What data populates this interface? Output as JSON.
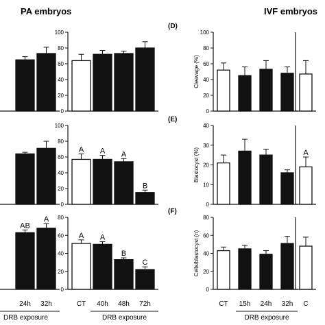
{
  "titles": {
    "pa": "PA embryos",
    "ivf": "IVF embryos"
  },
  "colors": {
    "control": "#ffffff",
    "treated": "#111111",
    "stroke": "#111111"
  },
  "chart_data": [
    {
      "id": "pa-left-1",
      "type": "bar",
      "categories": [
        "",
        "",
        "24h",
        "32h"
      ],
      "values": [
        null,
        null,
        65,
        73
      ],
      "errors": [
        null,
        null,
        4,
        8
      ],
      "fills": [
        "treated",
        "treated",
        "treated",
        "treated"
      ],
      "ylim": [
        0,
        100
      ],
      "yticks": [],
      "ylabel": "",
      "panel_label": "",
      "letters": [],
      "show_xlabels": false,
      "group_label": ""
    },
    {
      "id": "pa-right-1",
      "type": "bar",
      "categories": [
        "CT",
        "40h",
        "48h",
        "72h"
      ],
      "values": [
        64,
        72,
        73,
        80
      ],
      "errors": [
        8,
        5,
        3,
        8
      ],
      "fills": [
        "control",
        "treated",
        "treated",
        "treated"
      ],
      "ylim": [
        0,
        100
      ],
      "yticks": [
        0,
        20,
        40,
        60,
        80,
        100
      ],
      "ylabel": "",
      "panel_label": "",
      "letters": [],
      "show_xlabels": false,
      "group_label": ""
    },
    {
      "id": "ivf-left-1",
      "type": "bar",
      "categories": [
        "CT",
        "15h",
        "24h",
        "32h"
      ],
      "values": [
        52,
        45,
        53,
        48
      ],
      "errors": [
        9,
        11,
        11,
        8
      ],
      "fills": [
        "control",
        "treated",
        "treated",
        "treated"
      ],
      "ylim": [
        0,
        100
      ],
      "yticks": [
        0,
        20,
        40,
        60,
        80,
        100
      ],
      "ylabel": "Cleavage (%)",
      "panel_label": "(D)",
      "letters": [],
      "show_xlabels": false,
      "group_label": ""
    },
    {
      "id": "ivf-right-1",
      "type": "bar",
      "categories": [
        "CT"
      ],
      "values": [
        47
      ],
      "errors": [
        17
      ],
      "fills": [
        "control"
      ],
      "ylim": [
        0,
        100
      ],
      "yticks": [],
      "ylabel": "",
      "panel_label": "",
      "letters": [],
      "show_xlabels": false,
      "group_label": ""
    },
    {
      "id": "pa-left-2",
      "type": "bar",
      "categories": [
        "",
        "",
        "24h",
        "32h"
      ],
      "values": [
        null,
        null,
        64,
        71
      ],
      "errors": [
        null,
        null,
        2,
        9
      ],
      "fills": [
        "treated",
        "treated",
        "treated",
        "treated"
      ],
      "ylim": [
        0,
        100
      ],
      "yticks": [],
      "ylabel": "",
      "panel_label": "",
      "letters": [],
      "show_xlabels": false,
      "group_label": ""
    },
    {
      "id": "pa-right-2",
      "type": "bar",
      "categories": [
        "CT",
        "40h",
        "48h",
        "72h"
      ],
      "values": [
        57,
        57,
        54,
        15
      ],
      "errors": [
        7,
        5,
        4,
        3
      ],
      "fills": [
        "control",
        "treated",
        "treated",
        "treated"
      ],
      "ylim": [
        0,
        100
      ],
      "yticks": [
        0,
        20,
        40,
        60,
        80,
        100
      ],
      "ylabel": "",
      "panel_label": "",
      "letters": [
        "A",
        "A",
        "A",
        "B"
      ],
      "show_xlabels": false,
      "group_label": ""
    },
    {
      "id": "ivf-left-2",
      "type": "bar",
      "categories": [
        "CT",
        "15h",
        "24h",
        "32h"
      ],
      "values": [
        21,
        27,
        25,
        16
      ],
      "errors": [
        4,
        6,
        3,
        1.5
      ],
      "fills": [
        "control",
        "treated",
        "treated",
        "treated"
      ],
      "ylim": [
        0,
        40
      ],
      "yticks": [
        0,
        10,
        20,
        30,
        40
      ],
      "ylabel": "Blastocyst (%)",
      "panel_label": "(E)",
      "letters": [],
      "show_xlabels": false,
      "group_label": ""
    },
    {
      "id": "ivf-right-2",
      "type": "bar",
      "categories": [
        "CT"
      ],
      "values": [
        19
      ],
      "errors": [
        5
      ],
      "fills": [
        "control"
      ],
      "ylim": [
        0,
        40
      ],
      "yticks": [],
      "ylabel": "",
      "panel_label": "",
      "letters": [
        "A"
      ],
      "show_xlabels": false,
      "group_label": ""
    },
    {
      "id": "pa-left-3",
      "type": "bar",
      "categories": [
        "",
        "",
        "24h",
        "32h"
      ],
      "values": [
        null,
        null,
        63,
        68
      ],
      "errors": [
        null,
        null,
        3,
        5
      ],
      "fills": [
        "treated",
        "treated",
        "treated",
        "treated"
      ],
      "ylim": [
        0,
        80
      ],
      "yticks": [],
      "ylabel": "",
      "panel_label": "",
      "letters": [
        "",
        "",
        "AB",
        "A"
      ],
      "show_xlabels": true,
      "group_label": "DRB exposure"
    },
    {
      "id": "pa-right-3",
      "type": "bar",
      "categories": [
        "CT",
        "40h",
        "48h",
        "72h"
      ],
      "values": [
        51,
        50,
        33,
        22
      ],
      "errors": [
        4,
        3,
        2,
        3
      ],
      "fills": [
        "control",
        "treated",
        "treated",
        "treated"
      ],
      "ylim": [
        0,
        80
      ],
      "yticks": [
        0,
        20,
        40,
        60,
        80
      ],
      "ylabel": "",
      "panel_label": "",
      "letters": [
        "A",
        "A",
        "B",
        "C"
      ],
      "show_xlabels": true,
      "group_label": "DRB exposure"
    },
    {
      "id": "ivf-left-3",
      "type": "bar",
      "categories": [
        "CT",
        "15h",
        "24h",
        "32h"
      ],
      "values": [
        43,
        45,
        39,
        51
      ],
      "errors": [
        4,
        4,
        4,
        8
      ],
      "fills": [
        "control",
        "treated",
        "treated",
        "treated"
      ],
      "ylim": [
        0,
        80
      ],
      "yticks": [
        0,
        20,
        40,
        60,
        80
      ],
      "ylabel": "Cells/blastocyst (n)",
      "panel_label": "(F)",
      "letters": [],
      "show_xlabels": true,
      "group_label": "DRB exposure"
    },
    {
      "id": "ivf-right-3",
      "type": "bar",
      "categories": [
        "C"
      ],
      "values": [
        48
      ],
      "errors": [
        10
      ],
      "fills": [
        "control"
      ],
      "ylim": [
        0,
        80
      ],
      "yticks": [],
      "ylabel": "",
      "panel_label": "",
      "letters": [],
      "show_xlabels": true,
      "group_label": ""
    }
  ]
}
